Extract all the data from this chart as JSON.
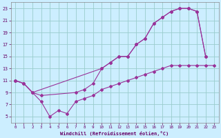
{
  "x_ticks": [
    0,
    1,
    2,
    3,
    4,
    5,
    6,
    7,
    8,
    9,
    10,
    11,
    12,
    13,
    14,
    15,
    16,
    17,
    18,
    19,
    20,
    21,
    22,
    23
  ],
  "line1_x": [
    0,
    1,
    2,
    10,
    11,
    12,
    13,
    14,
    15,
    16,
    17,
    18,
    19,
    20,
    21,
    22
  ],
  "line1_y": [
    11,
    10.5,
    9,
    13,
    14,
    15,
    15,
    17,
    18,
    20.5,
    21.5,
    22.5,
    23,
    23,
    22.5,
    15
  ],
  "line2_x": [
    0,
    1,
    2,
    3,
    7,
    8,
    9,
    10,
    11,
    12,
    13,
    14,
    15,
    16,
    17,
    18,
    19,
    20,
    21,
    22
  ],
  "line2_y": [
    11,
    10.5,
    9,
    8.5,
    9,
    9.5,
    10.5,
    13,
    14,
    15,
    15,
    17,
    18,
    20.5,
    21.5,
    22.5,
    23,
    23,
    22.5,
    15
  ],
  "line3_x": [
    0,
    1,
    2,
    3,
    4,
    5,
    6,
    7,
    8,
    9,
    10,
    11,
    12,
    13,
    14,
    15,
    16,
    17,
    18,
    19,
    20,
    21,
    22,
    23
  ],
  "line3_y": [
    11,
    10.5,
    9,
    7.5,
    5,
    6,
    5.5,
    7.5,
    8,
    8.5,
    9.5,
    10,
    10.5,
    11,
    11.5,
    12,
    12.5,
    13,
    13.5,
    13.5,
    13.5,
    13.5,
    13.5,
    13.5
  ],
  "line_color": "#993399",
  "bg_color": "#cceeff",
  "grid_color": "#99cccc",
  "xlabel": "Windchill (Refroidissement éolien,°C)",
  "ylim": [
    4,
    24
  ],
  "xlim": [
    -0.5,
    23.5
  ],
  "yticks": [
    5,
    7,
    9,
    11,
    13,
    15,
    17,
    19,
    21,
    23
  ],
  "axis_color": "#660066",
  "marker": "D",
  "markersize": 2.0,
  "linewidth": 0.8
}
